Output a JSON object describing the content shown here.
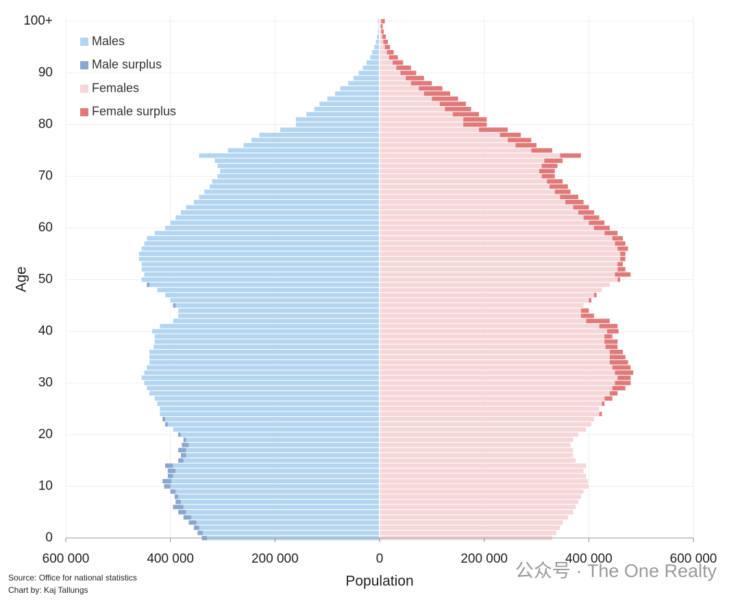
{
  "chart_data": {
    "type": "pyramid",
    "ylabel": "Age",
    "xlabel": "Population",
    "source": "Source: Office for national statistics",
    "credit": "Chart by: Kaj Tallungs",
    "watermark": "公众号 · The One Realty",
    "ages": [
      0,
      1,
      2,
      3,
      4,
      5,
      6,
      7,
      8,
      9,
      10,
      11,
      12,
      13,
      14,
      15,
      16,
      17,
      18,
      19,
      20,
      21,
      22,
      23,
      24,
      25,
      26,
      27,
      28,
      29,
      30,
      31,
      32,
      33,
      34,
      35,
      36,
      37,
      38,
      39,
      40,
      41,
      42,
      43,
      44,
      45,
      46,
      47,
      48,
      49,
      50,
      51,
      52,
      53,
      54,
      55,
      56,
      57,
      58,
      59,
      60,
      61,
      62,
      63,
      64,
      65,
      66,
      67,
      68,
      69,
      70,
      71,
      72,
      73,
      74,
      75,
      76,
      77,
      78,
      79,
      80,
      81,
      82,
      83,
      84,
      85,
      86,
      87,
      88,
      89,
      90,
      91,
      92,
      93,
      94,
      95,
      96,
      97,
      98,
      99,
      100
    ],
    "series": [
      {
        "name": "Males",
        "color": "#b4d5ef",
        "surplus": {
          "name": "Male surplus",
          "color": "#8ba6cc"
        },
        "values": [
          340000,
          348000,
          355000,
          365000,
          375000,
          385000,
          395000,
          390000,
          392000,
          400000,
          412000,
          415000,
          405000,
          405000,
          410000,
          385000,
          380000,
          385000,
          378000,
          375000,
          385000,
          395000,
          410000,
          415000,
          420000,
          420000,
          425000,
          430000,
          440000,
          445000,
          450000,
          455000,
          450000,
          445000,
          440000,
          440000,
          440000,
          432000,
          430000,
          430000,
          435000,
          420000,
          395000,
          385000,
          385000,
          395000,
          400000,
          410000,
          425000,
          445000,
          455000,
          450000,
          455000,
          455000,
          460000,
          460000,
          455000,
          450000,
          445000,
          430000,
          410000,
          400000,
          390000,
          380000,
          370000,
          355000,
          345000,
          335000,
          325000,
          320000,
          310000,
          305000,
          310000,
          315000,
          345000,
          290000,
          260000,
          245000,
          230000,
          190000,
          160000,
          160000,
          140000,
          125000,
          115000,
          100000,
          85000,
          75000,
          60000,
          50000,
          40000,
          32000,
          25000,
          18000,
          14000,
          10000,
          7000,
          5000,
          3000,
          2000,
          3000
        ]
      },
      {
        "name": "Females",
        "color": "#f5d7d9",
        "surplus": {
          "name": "Female surplus",
          "color": "#e07a7a"
        },
        "values": [
          330000,
          338000,
          345000,
          350000,
          360000,
          370000,
          375000,
          380000,
          385000,
          390000,
          400000,
          398000,
          395000,
          390000,
          395000,
          375000,
          370000,
          370000,
          365000,
          370000,
          380000,
          395000,
          405000,
          410000,
          425000,
          420000,
          430000,
          445000,
          455000,
          470000,
          480000,
          480000,
          485000,
          480000,
          475000,
          470000,
          465000,
          455000,
          455000,
          445000,
          457000,
          455000,
          440000,
          410000,
          400000,
          390000,
          405000,
          415000,
          425000,
          440000,
          460000,
          480000,
          470000,
          465000,
          470000,
          470000,
          475000,
          470000,
          465000,
          455000,
          440000,
          430000,
          420000,
          410000,
          400000,
          390000,
          380000,
          365000,
          360000,
          350000,
          335000,
          335000,
          340000,
          350000,
          385000,
          330000,
          300000,
          290000,
          270000,
          245000,
          205000,
          205000,
          190000,
          175000,
          165000,
          150000,
          135000,
          120000,
          100000,
          85000,
          70000,
          60000,
          45000,
          35000,
          27000,
          20000,
          16000,
          12000,
          8000,
          6000,
          10000
        ]
      }
    ],
    "xlim": [
      -600000,
      600000
    ],
    "xticks": [
      {
        "value": -600000,
        "label": "600 000"
      },
      {
        "value": -400000,
        "label": "400 000"
      },
      {
        "value": -200000,
        "label": "200 000"
      },
      0,
      {
        "value": 200000,
        "label": "200 000"
      },
      {
        "value": 400000,
        "label": "400 000"
      },
      {
        "value": 600000,
        "label": "600 000"
      }
    ],
    "ylim": [
      0,
      100
    ],
    "yticks": [
      0,
      10,
      20,
      30,
      40,
      50,
      60,
      70,
      80,
      90,
      {
        "value": 100,
        "label": "100+"
      }
    ],
    "grid": true
  }
}
